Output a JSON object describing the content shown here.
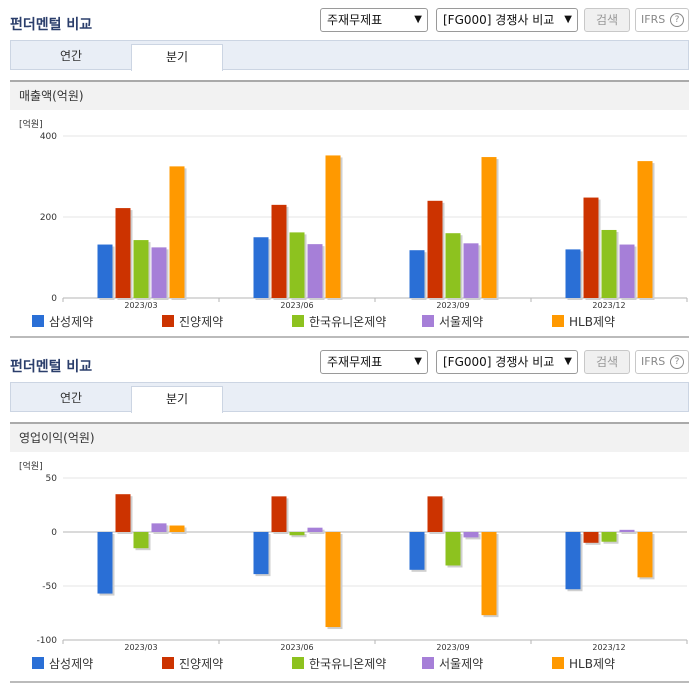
{
  "header": {
    "title": "펀더멘털 비교",
    "statement_select": "주재무제표",
    "compare_select": "[FG000] 경쟁사 비교",
    "search_label": "검색",
    "ifrs_label": "IFRS",
    "help_icon": "?"
  },
  "tabs": [
    {
      "label": "연간"
    },
    {
      "label": "분기",
      "selected": true
    }
  ],
  "colors": {
    "삼성제약": "#2a6fd6",
    "진양제약": "#cc3300",
    "한국유니온제약": "#8dc21f",
    "서울제약": "#a67fd8",
    "HLB제약": "#ff9900"
  },
  "charts": [
    {
      "metric_label": "매출액(억원)",
      "chart_data": {
        "type": "bar",
        "unit_label": "[억원]",
        "categories": [
          "2023/03",
          "2023/06",
          "2023/09",
          "2023/12"
        ],
        "ylim": [
          0,
          400
        ],
        "yticks": [
          "400",
          "200",
          "0"
        ],
        "ytick_values": [
          400,
          200,
          0
        ],
        "grid": true,
        "legend_position": "bottom",
        "series": [
          {
            "name": "삼성제약",
            "values": [
              132,
              150,
              118,
              120
            ]
          },
          {
            "name": "진양제약",
            "values": [
              222,
              230,
              240,
              248
            ]
          },
          {
            "name": "한국유니온제약",
            "values": [
              143,
              162,
              160,
              168
            ]
          },
          {
            "name": "서울제약",
            "values": [
              125,
              133,
              135,
              132
            ]
          },
          {
            "name": "HLB제약",
            "values": [
              325,
              352,
              348,
              338
            ]
          }
        ]
      }
    },
    {
      "metric_label": "영업이익(억원)",
      "chart_data": {
        "type": "bar",
        "unit_label": "[억원]",
        "categories": [
          "2023/03",
          "2023/06",
          "2023/09",
          "2023/12"
        ],
        "ylim": [
          -100,
          50
        ],
        "yticks": [
          "50",
          "0",
          "-50",
          "-100"
        ],
        "ytick_values": [
          50,
          0,
          -50,
          -100
        ],
        "grid": true,
        "legend_position": "bottom",
        "series": [
          {
            "name": "삼성제약",
            "values": [
              -57,
              -39,
              -35,
              -53
            ]
          },
          {
            "name": "진양제약",
            "values": [
              35,
              33,
              33,
              -10
            ]
          },
          {
            "name": "한국유니온제약",
            "values": [
              -15,
              -3,
              -31,
              -9
            ]
          },
          {
            "name": "서울제약",
            "values": [
              8,
              4,
              -5,
              2
            ]
          },
          {
            "name": "HLB제약",
            "values": [
              6,
              -88,
              -77,
              -42
            ]
          }
        ]
      }
    }
  ]
}
